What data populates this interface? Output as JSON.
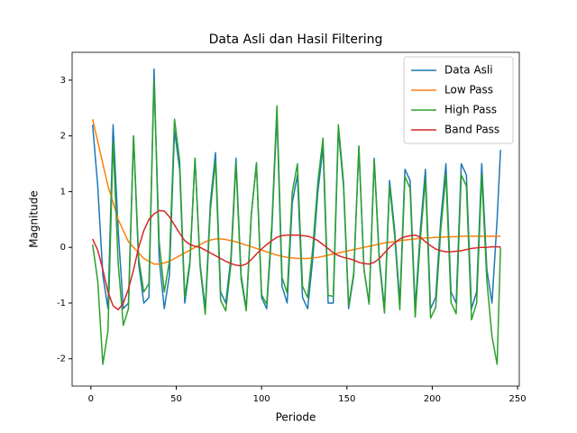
{
  "chart_data": {
    "type": "line",
    "title": "Data Asli dan Hasil Filtering",
    "xlabel": "Periode",
    "ylabel": "Magnitude",
    "xlim": [
      -11,
      251
    ],
    "ylim": [
      -2.49,
      3.5
    ],
    "xticks": [
      0,
      50,
      100,
      150,
      200,
      250
    ],
    "yticks": [
      -2,
      -1,
      0,
      1,
      2,
      3
    ],
    "legend": "upper right",
    "x": [
      1,
      4,
      7,
      10,
      13,
      16,
      19,
      22,
      25,
      28,
      31,
      34,
      37,
      40,
      43,
      46,
      49,
      52,
      55,
      58,
      61,
      64,
      67,
      70,
      73,
      76,
      79,
      82,
      85,
      88,
      91,
      94,
      97,
      100,
      103,
      106,
      109,
      112,
      115,
      118,
      121,
      124,
      127,
      130,
      133,
      136,
      139,
      142,
      145,
      148,
      151,
      154,
      157,
      160,
      163,
      166,
      169,
      172,
      175,
      178,
      181,
      184,
      187,
      190,
      193,
      196,
      199,
      202,
      205,
      208,
      211,
      214,
      217,
      220,
      223,
      226,
      229,
      232,
      235,
      238,
      240
    ],
    "series": [
      {
        "name": "Data Asli",
        "color": "#1f77b4",
        "values": [
          2.2,
          1.1,
          -0.5,
          -1.1,
          2.2,
          0.3,
          -1.1,
          -1.0,
          2.0,
          -0.3,
          -1.0,
          -0.9,
          3.2,
          -0.2,
          -1.1,
          -0.5,
          2.1,
          1.4,
          -1.0,
          -0.3,
          1.6,
          -0.3,
          -1.1,
          0.8,
          1.7,
          -0.8,
          -1.0,
          -0.2,
          1.6,
          -0.5,
          -1.1,
          0.6,
          1.5,
          -0.9,
          -1.1,
          0.3,
          2.4,
          -0.7,
          -1.0,
          0.8,
          1.3,
          -0.9,
          -1.1,
          -0.2,
          1.0,
          1.8,
          -1.0,
          -1.0,
          2.1,
          1.1,
          -1.1,
          -0.5,
          1.8,
          -0.4,
          -1.0,
          1.6,
          -0.2,
          -1.1,
          1.2,
          0.3,
          -1.0,
          1.4,
          1.2,
          -1.1,
          0.3,
          1.4,
          -1.1,
          -0.9,
          0.5,
          1.5,
          -0.8,
          -1.0,
          1.5,
          1.3,
          -1.1,
          -0.8,
          1.5,
          -0.4,
          -1.0,
          0.5,
          1.75
        ]
      },
      {
        "name": "Low Pass",
        "color": "#ff7f0e",
        "values": [
          2.3,
          1.9,
          1.5,
          1.1,
          0.8,
          0.5,
          0.3,
          0.1,
          0,
          -0.1,
          -0.2,
          -0.25,
          -0.3,
          -0.3,
          -0.28,
          -0.25,
          -0.2,
          -0.15,
          -0.1,
          -0.05,
          0,
          0.05,
          0.1,
          0.13,
          0.15,
          0.15,
          0.14,
          0.12,
          0.1,
          0.07,
          0.04,
          0.01,
          -0.02,
          -0.05,
          -0.08,
          -0.11,
          -0.14,
          -0.16,
          -0.18,
          -0.19,
          -0.2,
          -0.2,
          -0.2,
          -0.19,
          -0.18,
          -0.16,
          -0.14,
          -0.12,
          -0.1,
          -0.08,
          -0.06,
          -0.04,
          -0.02,
          0,
          0.02,
          0.04,
          0.06,
          0.08,
          0.09,
          0.1,
          0.12,
          0.13,
          0.14,
          0.15,
          0.16,
          0.17,
          0.17,
          0.18,
          0.18,
          0.19,
          0.19,
          0.19,
          0.2,
          0.2,
          0.2,
          0.2,
          0.2,
          0.2,
          0.2,
          0.2,
          0.2
        ]
      },
      {
        "name": "High Pass",
        "color": "#2ca02c",
        "values": [
          0.05,
          -0.6,
          -2.1,
          -1.5,
          1.9,
          -0.3,
          -1.4,
          -1.1,
          2.0,
          -0.2,
          -0.8,
          -0.65,
          3.0,
          0.1,
          -0.8,
          -0.25,
          2.3,
          1.55,
          -0.9,
          -0.25,
          1.6,
          -0.35,
          -1.2,
          0.67,
          1.55,
          -0.95,
          -1.14,
          -0.32,
          1.5,
          -0.57,
          -1.14,
          0.59,
          1.52,
          -0.85,
          -1.02,
          0.41,
          2.54,
          -0.54,
          -0.82,
          0.99,
          1.5,
          -0.7,
          -0.9,
          -0.01,
          1.18,
          1.96,
          -0.86,
          -0.88,
          2.2,
          1.18,
          -1.04,
          -0.46,
          1.82,
          -0.4,
          -1.02,
          1.56,
          -0.26,
          -1.18,
          1.11,
          0.2,
          -1.12,
          1.27,
          1.06,
          -1.25,
          0.14,
          1.23,
          -1.27,
          -1.08,
          0.32,
          1.31,
          -0.99,
          -1.19,
          1.3,
          1.1,
          -1.3,
          -1.0,
          1.3,
          -0.6,
          -1.6,
          -2.1,
          0.0
        ]
      },
      {
        "name": "Band Pass",
        "color": "#d62728",
        "values": [
          0.15,
          -0.05,
          -0.4,
          -0.8,
          -1.05,
          -1.12,
          -1.0,
          -0.75,
          -0.4,
          0,
          0.3,
          0.5,
          0.6,
          0.66,
          0.65,
          0.55,
          0.4,
          0.25,
          0.12,
          0.05,
          0.02,
          0,
          -0.05,
          -0.1,
          -0.15,
          -0.2,
          -0.25,
          -0.29,
          -0.32,
          -0.33,
          -0.3,
          -0.22,
          -0.12,
          -0.03,
          0.05,
          0.12,
          0.18,
          0.21,
          0.22,
          0.22,
          0.22,
          0.21,
          0.2,
          0.17,
          0.12,
          0.05,
          -0.02,
          -0.1,
          -0.15,
          -0.18,
          -0.2,
          -0.23,
          -0.27,
          -0.29,
          -0.3,
          -0.27,
          -0.2,
          -0.1,
          0,
          0.08,
          0.15,
          0.19,
          0.21,
          0.22,
          0.18,
          0.1,
          0.03,
          -0.03,
          -0.06,
          -0.08,
          -0.08,
          -0.07,
          -0.06,
          -0.04,
          -0.02,
          -0.01,
          0,
          0,
          0.01,
          0.01,
          0.01
        ]
      }
    ]
  }
}
